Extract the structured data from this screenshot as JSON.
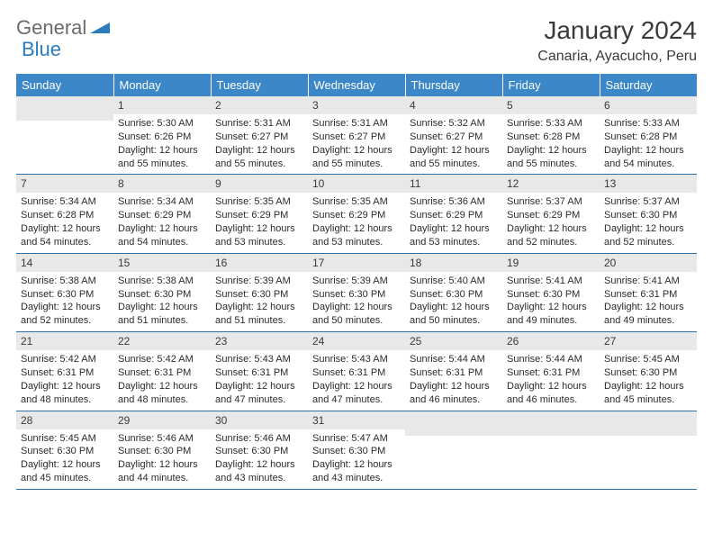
{
  "logo": {
    "gray": "General",
    "blue": "Blue"
  },
  "title": "January 2024",
  "location": "Canaria, Ayacucho, Peru",
  "colors": {
    "header_bg": "#3b87c8",
    "header_text": "#ffffff",
    "daynum_bg": "#e8e8e8",
    "row_border": "#2b6fa8",
    "text": "#2b2b2b",
    "logo_gray": "#6b6b6b",
    "logo_blue": "#2b7bbf"
  },
  "weekdays": [
    "Sunday",
    "Monday",
    "Tuesday",
    "Wednesday",
    "Thursday",
    "Friday",
    "Saturday"
  ],
  "first_weekday_index": 1,
  "days": [
    {
      "n": 1,
      "sr": "5:30 AM",
      "ss": "6:26 PM",
      "dl": "12 hours and 55 minutes."
    },
    {
      "n": 2,
      "sr": "5:31 AM",
      "ss": "6:27 PM",
      "dl": "12 hours and 55 minutes."
    },
    {
      "n": 3,
      "sr": "5:31 AM",
      "ss": "6:27 PM",
      "dl": "12 hours and 55 minutes."
    },
    {
      "n": 4,
      "sr": "5:32 AM",
      "ss": "6:27 PM",
      "dl": "12 hours and 55 minutes."
    },
    {
      "n": 5,
      "sr": "5:33 AM",
      "ss": "6:28 PM",
      "dl": "12 hours and 55 minutes."
    },
    {
      "n": 6,
      "sr": "5:33 AM",
      "ss": "6:28 PM",
      "dl": "12 hours and 54 minutes."
    },
    {
      "n": 7,
      "sr": "5:34 AM",
      "ss": "6:28 PM",
      "dl": "12 hours and 54 minutes."
    },
    {
      "n": 8,
      "sr": "5:34 AM",
      "ss": "6:29 PM",
      "dl": "12 hours and 54 minutes."
    },
    {
      "n": 9,
      "sr": "5:35 AM",
      "ss": "6:29 PM",
      "dl": "12 hours and 53 minutes."
    },
    {
      "n": 10,
      "sr": "5:35 AM",
      "ss": "6:29 PM",
      "dl": "12 hours and 53 minutes."
    },
    {
      "n": 11,
      "sr": "5:36 AM",
      "ss": "6:29 PM",
      "dl": "12 hours and 53 minutes."
    },
    {
      "n": 12,
      "sr": "5:37 AM",
      "ss": "6:29 PM",
      "dl": "12 hours and 52 minutes."
    },
    {
      "n": 13,
      "sr": "5:37 AM",
      "ss": "6:30 PM",
      "dl": "12 hours and 52 minutes."
    },
    {
      "n": 14,
      "sr": "5:38 AM",
      "ss": "6:30 PM",
      "dl": "12 hours and 52 minutes."
    },
    {
      "n": 15,
      "sr": "5:38 AM",
      "ss": "6:30 PM",
      "dl": "12 hours and 51 minutes."
    },
    {
      "n": 16,
      "sr": "5:39 AM",
      "ss": "6:30 PM",
      "dl": "12 hours and 51 minutes."
    },
    {
      "n": 17,
      "sr": "5:39 AM",
      "ss": "6:30 PM",
      "dl": "12 hours and 50 minutes."
    },
    {
      "n": 18,
      "sr": "5:40 AM",
      "ss": "6:30 PM",
      "dl": "12 hours and 50 minutes."
    },
    {
      "n": 19,
      "sr": "5:41 AM",
      "ss": "6:30 PM",
      "dl": "12 hours and 49 minutes."
    },
    {
      "n": 20,
      "sr": "5:41 AM",
      "ss": "6:31 PM",
      "dl": "12 hours and 49 minutes."
    },
    {
      "n": 21,
      "sr": "5:42 AM",
      "ss": "6:31 PM",
      "dl": "12 hours and 48 minutes."
    },
    {
      "n": 22,
      "sr": "5:42 AM",
      "ss": "6:31 PM",
      "dl": "12 hours and 48 minutes."
    },
    {
      "n": 23,
      "sr": "5:43 AM",
      "ss": "6:31 PM",
      "dl": "12 hours and 47 minutes."
    },
    {
      "n": 24,
      "sr": "5:43 AM",
      "ss": "6:31 PM",
      "dl": "12 hours and 47 minutes."
    },
    {
      "n": 25,
      "sr": "5:44 AM",
      "ss": "6:31 PM",
      "dl": "12 hours and 46 minutes."
    },
    {
      "n": 26,
      "sr": "5:44 AM",
      "ss": "6:31 PM",
      "dl": "12 hours and 46 minutes."
    },
    {
      "n": 27,
      "sr": "5:45 AM",
      "ss": "6:30 PM",
      "dl": "12 hours and 45 minutes."
    },
    {
      "n": 28,
      "sr": "5:45 AM",
      "ss": "6:30 PM",
      "dl": "12 hours and 45 minutes."
    },
    {
      "n": 29,
      "sr": "5:46 AM",
      "ss": "6:30 PM",
      "dl": "12 hours and 44 minutes."
    },
    {
      "n": 30,
      "sr": "5:46 AM",
      "ss": "6:30 PM",
      "dl": "12 hours and 43 minutes."
    },
    {
      "n": 31,
      "sr": "5:47 AM",
      "ss": "6:30 PM",
      "dl": "12 hours and 43 minutes."
    }
  ],
  "labels": {
    "sunrise": "Sunrise:",
    "sunset": "Sunset:",
    "daylight": "Daylight:"
  }
}
